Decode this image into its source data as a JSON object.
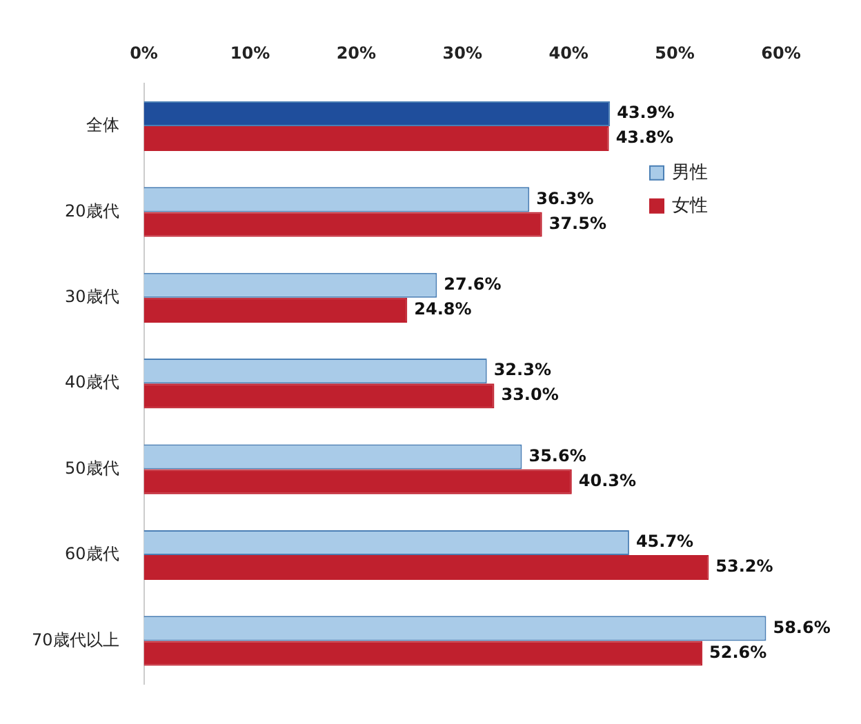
{
  "chart_data": {
    "type": "bar",
    "orientation": "horizontal",
    "categories": [
      "全体",
      "20歳代",
      "30歳代",
      "40歳代",
      "50歳代",
      "60歳代",
      "70歳代以上"
    ],
    "series": [
      {
        "name": "男性",
        "color": "#a9cbe8",
        "colors": [
          "#1f4e9c",
          "#a9cbe8",
          "#a9cbe8",
          "#a9cbe8",
          "#a9cbe8",
          "#a9cbe8",
          "#a9cbe8"
        ],
        "values": [
          43.9,
          36.3,
          27.6,
          32.3,
          35.6,
          45.7,
          58.6
        ],
        "value_labels": [
          "43.9%",
          "36.3%",
          "27.6%",
          "32.3%",
          "35.6%",
          "45.7%",
          "58.6%"
        ]
      },
      {
        "name": "女性",
        "color": "#c0202e",
        "values": [
          43.8,
          37.5,
          24.8,
          33.0,
          40.3,
          53.2,
          52.6
        ],
        "value_labels": [
          "43.8%",
          "37.5%",
          "24.8%",
          "33.0%",
          "40.3%",
          "53.2%",
          "52.6%"
        ]
      }
    ],
    "xlim": [
      0,
      60
    ],
    "xticks": [
      {
        "value": 0,
        "label": "0%"
      },
      {
        "value": 10,
        "label": "10%"
      },
      {
        "value": 20,
        "label": "20%"
      },
      {
        "value": 30,
        "label": "30%"
      },
      {
        "value": 40,
        "label": "40%"
      },
      {
        "value": 50,
        "label": "50%"
      },
      {
        "value": 60,
        "label": "60%"
      }
    ],
    "grid": false,
    "legend": "top right"
  }
}
